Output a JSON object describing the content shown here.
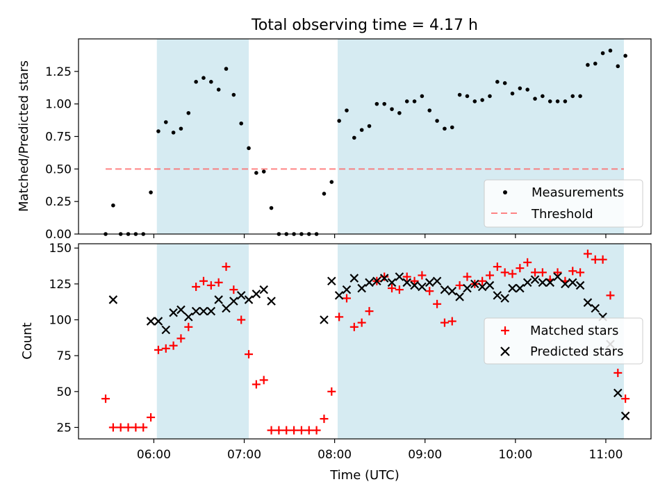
{
  "figure": {
    "title": "Total observing time = 4.17 h",
    "colors": {
      "shade": "#add8e6",
      "threshold": "#ff6666",
      "measurement": "#000000",
      "matched": "#ff0000",
      "predicted": "#000000"
    }
  },
  "chart_data": [
    {
      "type": "scatter",
      "panel": "top",
      "ylabel": "Matched/Predicted stars",
      "xlabel": "",
      "xlim": [
        "05:10",
        "11:30"
      ],
      "ylim": [
        0,
        1.5
      ],
      "yticks": [
        0.0,
        0.25,
        0.5,
        0.75,
        1.0,
        1.25
      ],
      "ytick_labels": [
        "0.00",
        "0.25",
        "0.50",
        "0.75",
        "1.00",
        "1.25"
      ],
      "grid": false,
      "legend_position": "lower-right",
      "shaded_spans": [
        [
          "06:02",
          "07:03"
        ],
        [
          "08:02",
          "11:12"
        ]
      ],
      "threshold": {
        "name": "Threshold",
        "y": 0.5,
        "x_range": [
          "05:28",
          "11:12"
        ]
      },
      "series": [
        {
          "name": "Measurements",
          "marker": "dot",
          "points": [
            [
              "05:28",
              0.0
            ],
            [
              "05:33",
              0.22
            ],
            [
              "05:38",
              0.0
            ],
            [
              "05:43",
              0.0
            ],
            [
              "05:48",
              0.0
            ],
            [
              "05:53",
              0.0
            ],
            [
              "05:58",
              0.32
            ],
            [
              "06:03",
              0.79
            ],
            [
              "06:08",
              0.86
            ],
            [
              "06:13",
              0.78
            ],
            [
              "06:18",
              0.81
            ],
            [
              "06:23",
              0.93
            ],
            [
              "06:28",
              1.17
            ],
            [
              "06:33",
              1.2
            ],
            [
              "06:38",
              1.17
            ],
            [
              "06:43",
              1.11
            ],
            [
              "06:48",
              1.27
            ],
            [
              "06:53",
              1.07
            ],
            [
              "06:58",
              0.85
            ],
            [
              "07:03",
              0.66
            ],
            [
              "07:08",
              0.47
            ],
            [
              "07:13",
              0.48
            ],
            [
              "07:18",
              0.2
            ],
            [
              "07:23",
              0.0
            ],
            [
              "07:28",
              0.0
            ],
            [
              "07:33",
              0.0
            ],
            [
              "07:38",
              0.0
            ],
            [
              "07:43",
              0.0
            ],
            [
              "07:48",
              0.0
            ],
            [
              "07:53",
              0.31
            ],
            [
              "07:58",
              0.4
            ],
            [
              "08:03",
              0.87
            ],
            [
              "08:08",
              0.95
            ],
            [
              "08:13",
              0.74
            ],
            [
              "08:18",
              0.8
            ],
            [
              "08:23",
              0.83
            ],
            [
              "08:28",
              1.0
            ],
            [
              "08:33",
              1.0
            ],
            [
              "08:38",
              0.96
            ],
            [
              "08:43",
              0.93
            ],
            [
              "08:48",
              1.02
            ],
            [
              "08:53",
              1.02
            ],
            [
              "08:58",
              1.06
            ],
            [
              "09:03",
              0.95
            ],
            [
              "09:08",
              0.87
            ],
            [
              "09:13",
              0.81
            ],
            [
              "09:18",
              0.82
            ],
            [
              "09:23",
              1.07
            ],
            [
              "09:28",
              1.06
            ],
            [
              "09:33",
              1.02
            ],
            [
              "09:38",
              1.03
            ],
            [
              "09:43",
              1.06
            ],
            [
              "09:48",
              1.17
            ],
            [
              "09:53",
              1.16
            ],
            [
              "09:58",
              1.08
            ],
            [
              "10:03",
              1.12
            ],
            [
              "10:08",
              1.11
            ],
            [
              "10:13",
              1.04
            ],
            [
              "10:18",
              1.06
            ],
            [
              "10:23",
              1.02
            ],
            [
              "10:28",
              1.02
            ],
            [
              "10:33",
              1.02
            ],
            [
              "10:38",
              1.06
            ],
            [
              "10:43",
              1.06
            ],
            [
              "10:48",
              1.3
            ],
            [
              "10:53",
              1.31
            ],
            [
              "10:58",
              1.39
            ],
            [
              "11:03",
              1.41
            ],
            [
              "11:08",
              1.29
            ],
            [
              "11:13",
              1.37
            ]
          ]
        }
      ]
    },
    {
      "type": "scatter",
      "panel": "bottom",
      "ylabel": "Count",
      "xlabel": "Time (UTC)",
      "xlim": [
        "05:10",
        "11:30"
      ],
      "ylim": [
        17,
        153
      ],
      "yticks": [
        25,
        50,
        75,
        100,
        125,
        150
      ],
      "ytick_labels": [
        "25",
        "50",
        "75",
        "100",
        "125",
        "150"
      ],
      "xticks": [
        "06:00",
        "07:00",
        "08:00",
        "09:00",
        "10:00",
        "11:00"
      ],
      "grid": false,
      "legend_position": "center-right",
      "shaded_spans": [
        [
          "06:02",
          "07:03"
        ],
        [
          "08:02",
          "11:12"
        ]
      ],
      "series": [
        {
          "name": "Matched stars",
          "marker": "plus",
          "points": [
            [
              "05:28",
              45
            ],
            [
              "05:33",
              25
            ],
            [
              "05:38",
              25
            ],
            [
              "05:43",
              25
            ],
            [
              "05:48",
              25
            ],
            [
              "05:53",
              25
            ],
            [
              "05:58",
              32
            ],
            [
              "06:03",
              79
            ],
            [
              "06:08",
              80
            ],
            [
              "06:13",
              82
            ],
            [
              "06:18",
              87
            ],
            [
              "06:23",
              95
            ],
            [
              "06:28",
              123
            ],
            [
              "06:33",
              127
            ],
            [
              "06:38",
              124
            ],
            [
              "06:43",
              126
            ],
            [
              "06:48",
              137
            ],
            [
              "06:53",
              121
            ],
            [
              "06:58",
              100
            ],
            [
              "07:03",
              76
            ],
            [
              "07:08",
              55
            ],
            [
              "07:13",
              58
            ],
            [
              "07:18",
              23
            ],
            [
              "07:23",
              23
            ],
            [
              "07:28",
              23
            ],
            [
              "07:33",
              23
            ],
            [
              "07:38",
              23
            ],
            [
              "07:43",
              23
            ],
            [
              "07:48",
              23
            ],
            [
              "07:53",
              31
            ],
            [
              "07:58",
              50
            ],
            [
              "08:03",
              102
            ],
            [
              "08:08",
              115
            ],
            [
              "08:13",
              95
            ],
            [
              "08:18",
              98
            ],
            [
              "08:23",
              106
            ],
            [
              "08:28",
              127
            ],
            [
              "08:33",
              130
            ],
            [
              "08:38",
              122
            ],
            [
              "08:43",
              121
            ],
            [
              "08:48",
              130
            ],
            [
              "08:53",
              127
            ],
            [
              "08:58",
              131
            ],
            [
              "09:03",
              120
            ],
            [
              "09:08",
              111
            ],
            [
              "09:13",
              98
            ],
            [
              "09:18",
              99
            ],
            [
              "09:23",
              124
            ],
            [
              "09:28",
              130
            ],
            [
              "09:33",
              125
            ],
            [
              "09:38",
              127
            ],
            [
              "09:43",
              131
            ],
            [
              "09:48",
              137
            ],
            [
              "09:53",
              133
            ],
            [
              "09:58",
              132
            ],
            [
              "10:03",
              136
            ],
            [
              "10:08",
              140
            ],
            [
              "10:13",
              133
            ],
            [
              "10:18",
              133
            ],
            [
              "10:23",
              128
            ],
            [
              "10:28",
              133
            ],
            [
              "10:33",
              127
            ],
            [
              "10:38",
              134
            ],
            [
              "10:43",
              133
            ],
            [
              "10:48",
              146
            ],
            [
              "10:53",
              142
            ],
            [
              "10:58",
              142
            ],
            [
              "11:03",
              117
            ],
            [
              "11:08",
              63
            ],
            [
              "11:13",
              45
            ]
          ]
        },
        {
          "name": "Predicted stars",
          "marker": "x",
          "points": [
            [
              "05:33",
              114
            ],
            [
              "05:58",
              99
            ],
            [
              "06:03",
              99
            ],
            [
              "06:08",
              93
            ],
            [
              "06:13",
              105
            ],
            [
              "06:18",
              107
            ],
            [
              "06:23",
              102
            ],
            [
              "06:28",
              106
            ],
            [
              "06:33",
              106
            ],
            [
              "06:38",
              106
            ],
            [
              "06:43",
              114
            ],
            [
              "06:48",
              108
            ],
            [
              "06:53",
              113
            ],
            [
              "06:58",
              117
            ],
            [
              "07:03",
              114
            ],
            [
              "07:08",
              118
            ],
            [
              "07:13",
              121
            ],
            [
              "07:18",
              113
            ],
            [
              "07:53",
              100
            ],
            [
              "07:58",
              127
            ],
            [
              "08:03",
              117
            ],
            [
              "08:08",
              121
            ],
            [
              "08:13",
              129
            ],
            [
              "08:18",
              122
            ],
            [
              "08:23",
              126
            ],
            [
              "08:28",
              127
            ],
            [
              "08:33",
              129
            ],
            [
              "08:38",
              126
            ],
            [
              "08:43",
              130
            ],
            [
              "08:48",
              126
            ],
            [
              "08:53",
              124
            ],
            [
              "08:58",
              123
            ],
            [
              "09:03",
              126
            ],
            [
              "09:08",
              127
            ],
            [
              "09:13",
              121
            ],
            [
              "09:18",
              120
            ],
            [
              "09:23",
              116
            ],
            [
              "09:28",
              122
            ],
            [
              "09:33",
              125
            ],
            [
              "09:38",
              123
            ],
            [
              "09:43",
              124
            ],
            [
              "09:48",
              117
            ],
            [
              "09:53",
              115
            ],
            [
              "09:58",
              122
            ],
            [
              "10:03",
              122
            ],
            [
              "10:08",
              126
            ],
            [
              "10:13",
              128
            ],
            [
              "10:18",
              126
            ],
            [
              "10:23",
              126
            ],
            [
              "10:28",
              130
            ],
            [
              "10:33",
              125
            ],
            [
              "10:38",
              126
            ],
            [
              "10:43",
              124
            ],
            [
              "10:48",
              112
            ],
            [
              "10:53",
              108
            ],
            [
              "10:58",
              102
            ],
            [
              "11:03",
              83
            ],
            [
              "11:08",
              49
            ],
            [
              "11:13",
              33
            ]
          ]
        }
      ]
    }
  ]
}
